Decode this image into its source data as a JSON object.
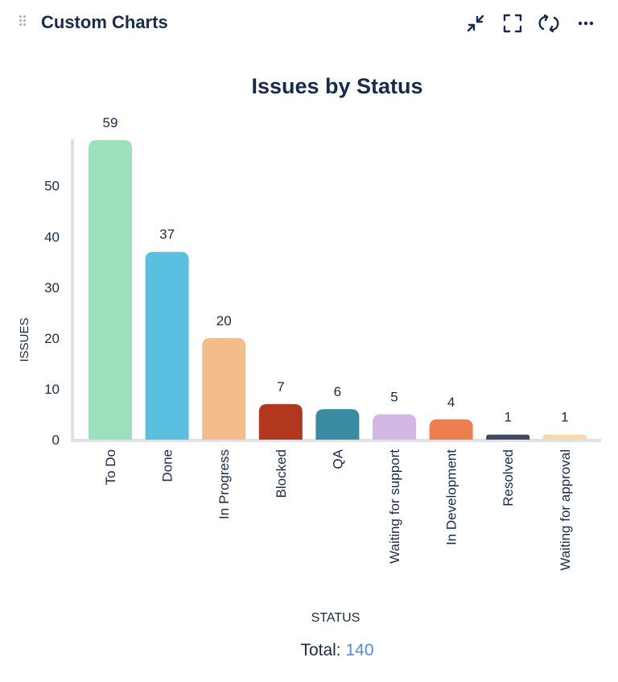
{
  "header": {
    "title": "Custom Charts",
    "icons": [
      "drag-handle-icon",
      "collapse-icon",
      "fullscreen-icon",
      "refresh-icon",
      "more-icon"
    ]
  },
  "chart_data": {
    "type": "bar",
    "title": "Issues by Status",
    "xlabel": "STATUS",
    "ylabel": "ISSUES",
    "categories": [
      "To Do",
      "Done",
      "In Progress",
      "Blocked",
      "QA",
      "Waiting for support",
      "In Development",
      "Resolved",
      "Waiting for approval"
    ],
    "values": [
      59,
      37,
      20,
      7,
      6,
      5,
      4,
      1,
      1
    ],
    "colors": [
      "#9ce0bd",
      "#5bbfdf",
      "#f3bd8b",
      "#b2371f",
      "#3a8aa1",
      "#d3b7e5",
      "#ee7e4e",
      "#3e4a5e",
      "#f5d9a8"
    ],
    "yticks": [
      0,
      10,
      20,
      30,
      40,
      50
    ],
    "ylim": [
      0,
      59
    ],
    "grid": false,
    "legend": "none"
  },
  "footer": {
    "total_label": "Total:",
    "total_value": "140"
  }
}
